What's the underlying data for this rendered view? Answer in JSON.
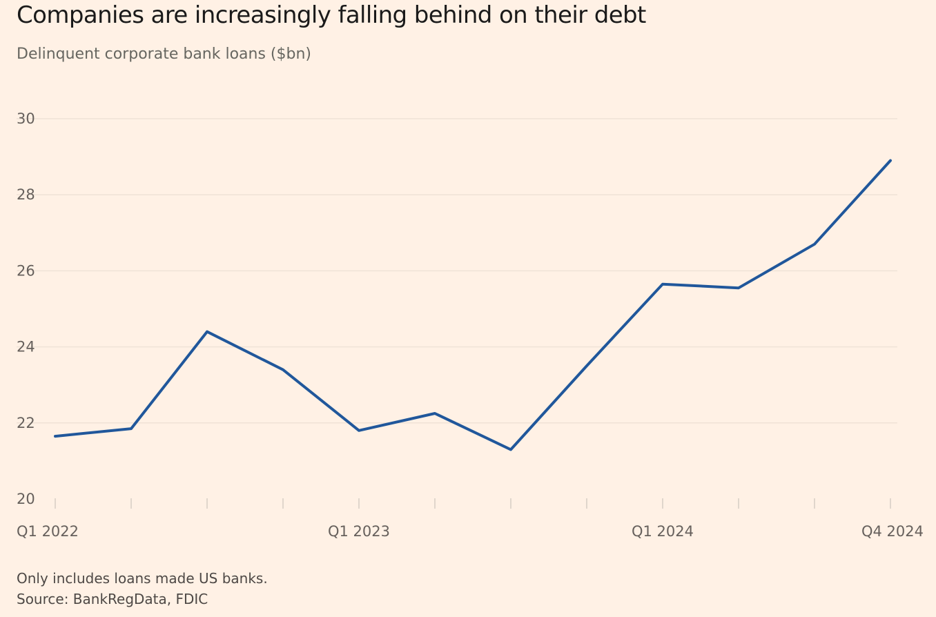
{
  "title": "Companies are increasingly falling behind on their debt",
  "subtitle": "Delinquent corporate bank loans ($bn)",
  "note": "Only includes loans made US banks.",
  "source": "Source: BankRegData, FDIC",
  "colors": {
    "background": "#fff1e5",
    "line": "#20579b",
    "gridline": "#efe2d6",
    "tick": "#d5ccc3"
  },
  "chart_data": {
    "type": "line",
    "title": "Companies are increasingly falling behind on their debt",
    "subtitle": "Delinquent corporate bank loans ($bn)",
    "xlabel": "",
    "ylabel": "",
    "x": [
      "Q1 2022",
      "Q2 2022",
      "Q3 2022",
      "Q4 2022",
      "Q1 2023",
      "Q2 2023",
      "Q3 2023",
      "Q4 2023",
      "Q1 2024",
      "Q2 2024",
      "Q3 2024",
      "Q4 2024"
    ],
    "x_tick_labels": [
      {
        "x": "Q1 2022",
        "label": "Q1 2022"
      },
      {
        "x": "Q1 2023",
        "label": "Q1 2023"
      },
      {
        "x": "Q1 2024",
        "label": "Q1 2024"
      },
      {
        "x": "Q4 2024",
        "label": "Q4 2024"
      }
    ],
    "series": [
      {
        "values": [
          21.65,
          21.85,
          24.4,
          23.4,
          21.8,
          22.25,
          21.3,
          23.5,
          25.65,
          25.55,
          26.7,
          28.9
        ]
      }
    ],
    "ylim": [
      20,
      30
    ],
    "yticks": [
      20,
      22,
      24,
      26,
      28,
      30
    ],
    "grid": true,
    "legend": "none"
  }
}
